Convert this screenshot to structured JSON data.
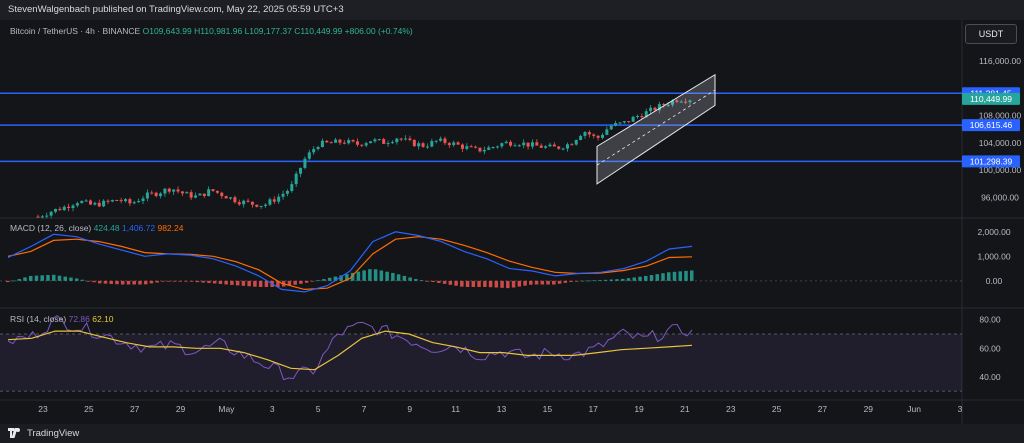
{
  "header": {
    "publisher": "StevenWalgenbach published on TradingView.com, May 22, 2025 05:59 UTC+3"
  },
  "symbol": {
    "name": "Bitcoin / TetherUS · 4h · BINANCE",
    "open": "O109,643.99",
    "high": "H110,981.96",
    "low": "L109,177.37",
    "close": "C110,449.99",
    "change": "+806.00 (+0.74%)"
  },
  "currency": "USDT",
  "macd": {
    "label": "MACD (12, 26, close)",
    "v1": "424.48",
    "v2": "1,406.72",
    "v3": "982.24"
  },
  "rsi": {
    "label": "RSI (14, close)",
    "v1": "72.86",
    "v2": "62.10"
  },
  "footer": {
    "brand": "TradingView"
  },
  "colors": {
    "up": "#26a69a",
    "down": "#ef5350",
    "level": "#2962ff",
    "macd": "#2962ff",
    "signal": "#ff6d00",
    "rsi": "#7e57c2",
    "rsi_ma": "#e8c43a"
  },
  "chart_data": [
    {
      "type": "candlestick",
      "title": "Bitcoin / TetherUS · 4h · BINANCE",
      "x_ticks": [
        "23",
        "25",
        "27",
        "29",
        "May",
        "3",
        "5",
        "7",
        "9",
        "11",
        "13",
        "15",
        "17",
        "19",
        "21",
        "23",
        "25",
        "27",
        "29",
        "Jun",
        "3"
      ],
      "y_ticks": [
        "116,000.00",
        "108,000.00",
        "104,000.00",
        "100,000.00",
        "96,000.00"
      ],
      "ylim": [
        93000,
        118500
      ],
      "levels": [
        "111,281.45",
        "106,615.46",
        "101,298.39"
      ],
      "level_values": [
        111281.45,
        106615.46,
        101298.39
      ],
      "last_price": "110,449.99",
      "last_price_value": 110449.99,
      "channel": {
        "start_date": "May 18",
        "end_date": "May 22",
        "lower": [
          98000,
          109500
        ],
        "upper": [
          103500,
          114000
        ]
      },
      "price_path": [
        [
          0,
          93200
        ],
        [
          2,
          94000
        ],
        [
          4,
          94600
        ],
        [
          6,
          95500
        ],
        [
          8,
          94900
        ],
        [
          10,
          95200
        ],
        [
          12,
          95700
        ],
        [
          14,
          95100
        ],
        [
          16,
          96200
        ],
        [
          18,
          96700
        ],
        [
          20,
          97400
        ],
        [
          22,
          96500
        ],
        [
          24,
          96100
        ],
        [
          26,
          97100
        ],
        [
          28,
          96300
        ],
        [
          30,
          95500
        ],
        [
          32,
          95100
        ],
        [
          34,
          94900
        ],
        [
          36,
          96000
        ],
        [
          38,
          97400
        ],
        [
          40,
          101500
        ],
        [
          42,
          103800
        ],
        [
          44,
          104000
        ],
        [
          46,
          104200
        ],
        [
          48,
          103800
        ],
        [
          50,
          104400
        ],
        [
          52,
          104100
        ],
        [
          54,
          104800
        ],
        [
          56,
          104000
        ],
        [
          58,
          103600
        ],
        [
          60,
          104300
        ],
        [
          62,
          104000
        ],
        [
          64,
          103400
        ],
        [
          66,
          102900
        ],
        [
          68,
          103300
        ],
        [
          70,
          104000
        ],
        [
          72,
          104100
        ],
        [
          74,
          103700
        ],
        [
          76,
          103400
        ],
        [
          78,
          103300
        ],
        [
          80,
          103900
        ],
        [
          82,
          105800
        ],
        [
          84,
          104600
        ],
        [
          86,
          106500
        ],
        [
          88,
          106900
        ],
        [
          90,
          107900
        ],
        [
          92,
          108700
        ],
        [
          94,
          109600
        ],
        [
          96,
          110400
        ],
        [
          98,
          110450
        ]
      ]
    },
    {
      "type": "line",
      "title": "MACD (12, 26, close)",
      "y_ticks": [
        "2,000.00",
        "1,000.00",
        "0.00"
      ],
      "ylim": [
        -700,
        2400
      ],
      "series": [
        {
          "name": "MACD",
          "values": [
            950,
            1400,
            1900,
            1800,
            1500,
            1250,
            1000,
            1100,
            1050,
            900,
            600,
            200,
            -350,
            -450,
            -200,
            400,
            1600,
            2000,
            1850,
            1600,
            1200,
            900,
            500,
            400,
            200,
            300,
            350,
            500,
            800,
            1300,
            1406.72
          ]
        },
        {
          "name": "Signal",
          "values": [
            1000,
            1200,
            1650,
            1700,
            1600,
            1400,
            1150,
            1100,
            1080,
            1000,
            780,
            450,
            -100,
            -350,
            -300,
            100,
            1100,
            1700,
            1800,
            1700,
            1450,
            1150,
            800,
            550,
            350,
            300,
            320,
            420,
            600,
            950,
            982.24
          ]
        },
        {
          "name": "Histogram",
          "values": [
            -50,
            200,
            250,
            100,
            -100,
            -150,
            -150,
            0,
            -30,
            -100,
            -180,
            -250,
            -250,
            -100,
            100,
            300,
            500,
            300,
            50,
            -100,
            -250,
            -250,
            -300,
            -150,
            -150,
            0,
            30,
            80,
            200,
            350,
            424.48
          ]
        }
      ]
    },
    {
      "type": "line",
      "title": "RSI (14, close)",
      "y_ticks": [
        "80.00",
        "60.00",
        "40.00"
      ],
      "ylim": [
        28,
        84
      ],
      "bands": [
        30,
        70
      ],
      "series": [
        {
          "name": "RSI",
          "values": [
            65,
            68,
            80,
            75,
            70,
            64,
            60,
            62,
            58,
            63,
            55,
            48,
            40,
            45,
            70,
            76,
            72,
            66,
            60,
            62,
            55,
            58,
            54,
            57,
            55,
            60,
            70,
            66,
            72,
            72.86
          ]
        },
        {
          "name": "RSI-MA",
          "values": [
            66,
            67,
            72,
            72,
            68,
            64,
            61,
            61,
            60,
            60,
            57,
            52,
            46,
            45,
            55,
            67,
            72,
            70,
            64,
            61,
            57,
            57,
            55,
            55,
            55,
            57,
            59,
            60,
            61,
            62.1
          ]
        }
      ]
    }
  ]
}
